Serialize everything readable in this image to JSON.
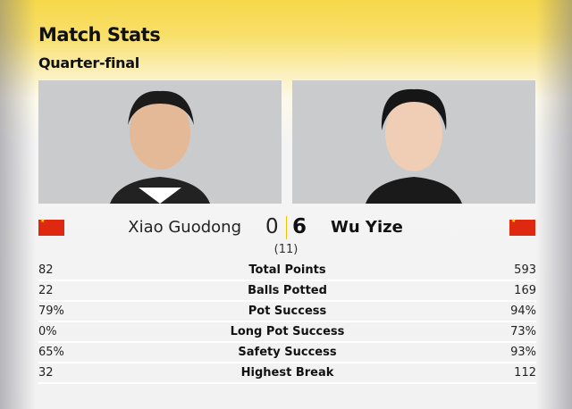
{
  "header": {
    "title": "Match Stats",
    "subtitle": "Quarter-final"
  },
  "players": {
    "left": {
      "name": "Xiao Guodong",
      "score": "0",
      "flag": "china-flag"
    },
    "right": {
      "name": "Wu Yize",
      "score": "6",
      "flag": "china-flag"
    }
  },
  "best_of": "(11)",
  "colors": {
    "header_yellow": "#f6d84a",
    "flag_red": "#de2910",
    "divider": "#f2c200"
  },
  "stats": [
    {
      "label": "Total Points",
      "left": "82",
      "right": "593"
    },
    {
      "label": "Balls Potted",
      "left": "22",
      "right": "169"
    },
    {
      "label": "Pot Success",
      "left": "79%",
      "right": "94%"
    },
    {
      "label": "Long Pot Success",
      "left": "0%",
      "right": "73%"
    },
    {
      "label": "Safety Success",
      "left": "65%",
      "right": "93%"
    },
    {
      "label": "Highest Break",
      "left": "32",
      "right": "112"
    }
  ]
}
